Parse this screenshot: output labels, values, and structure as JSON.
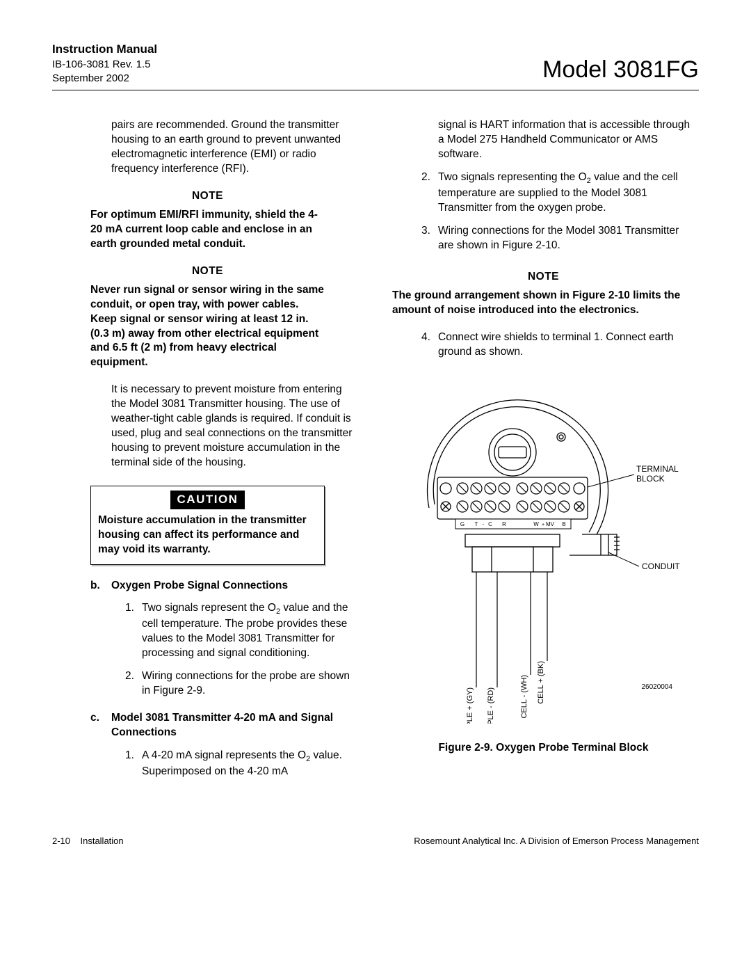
{
  "header": {
    "manual_title": "Instruction Manual",
    "doc_ref": "IB-106-3081 Rev. 1.5",
    "doc_date": "September 2002",
    "model": "Model 3081FG"
  },
  "col1": {
    "p1": "pairs are recommended. Ground the transmitter housing to an earth ground to prevent unwanted electromagnetic interference (EMI) or radio frequency interference (RFI).",
    "note1_head": "NOTE",
    "note1_body": "For optimum EMI/RFI immunity, shield the 4-20 mA current loop cable and enclose in an earth grounded metal conduit.",
    "note2_head": "NOTE",
    "note2_body": "Never run signal or sensor wiring in the same conduit, or open tray, with power cables.  Keep signal or sensor wiring at least 12 in. (0.3 m) away from other electrical equipment and 6.5 ft (2 m) from heavy electrical equipment.",
    "p2": "It is necessary to prevent moisture from entering the Model 3081 Transmitter housing. The use of weather-tight cable glands is required. If conduit is used, plug and seal connections on the transmitter housing to prevent moisture accumulation in the terminal side of the housing.",
    "caution_label": "CAUTION",
    "caution_body": "Moisture accumulation in the transmitter housing can affect its performance and may void its warranty.",
    "sec_b_letter": "b.",
    "sec_b_title": "Oxygen Probe Signal Connections",
    "b1_n": "1.",
    "b1_t_pre": "Two signals represent the O",
    "b1_t_sub": "2",
    "b1_t_post": " value and the cell temperature. The probe provides these values to the Model 3081 Transmitter for processing and signal conditioning.",
    "b2_n": "2.",
    "b2_t": "Wiring connections for the probe are shown in Figure 2-9.",
    "sec_c_letter": "c.",
    "sec_c_title": "Model 3081 Transmitter 4-20 mA and Signal Connections",
    "c1_n": "1.",
    "c1_t_pre": "A 4-20 mA signal represents the O",
    "c1_t_sub": "2",
    "c1_t_post": " value. Superimposed on the 4-20 mA"
  },
  "col2": {
    "p1": "signal is HART information that is accessible through a Model 275 Handheld Communicator or AMS software.",
    "i2_n": "2.",
    "i2_t_pre": "Two signals representing the O",
    "i2_t_sub": "2",
    "i2_t_post": " value and the cell temperature are supplied to the Model 3081 Transmitter from the oxygen probe.",
    "i3_n": "3.",
    "i3_t": "Wiring connections for the Model 3081 Transmitter are shown in Figure 2-10.",
    "note_head": "NOTE",
    "note_body": "The ground arrangement shown in Figure 2-10 limits the amount of noise introduced into the electronics.",
    "i4_n": "4.",
    "i4_t": "Connect wire shields to terminal 1. Connect earth ground as shown."
  },
  "figure": {
    "label_terminal": "TERMINAL BLOCK",
    "label_conduit": "CONDUIT",
    "label_tc_plus": "THERMOCOUPLE + (GY)",
    "label_tc_minus": "THERMOCOUPLE  - (RD)",
    "label_cell_minus": "CELL - (WH)",
    "label_cell_plus": "CELL + (BK)",
    "term_letters": [
      "G",
      "T",
      "C",
      "R",
      "",
      "W",
      "MV",
      "B"
    ],
    "term_row_letters_small": {
      "t4_1": "-",
      "t4_2": "+"
    },
    "drawing_num": "26020004",
    "caption": "Figure 2-9.  Oxygen Probe Terminal Block",
    "colors": {
      "stroke": "#000000",
      "fill_bg": "#ffffff"
    }
  },
  "footer": {
    "left_page": "2-10",
    "left_section": "Installation",
    "right": "Rosemount Analytical Inc.    A Division of Emerson Process Management"
  }
}
